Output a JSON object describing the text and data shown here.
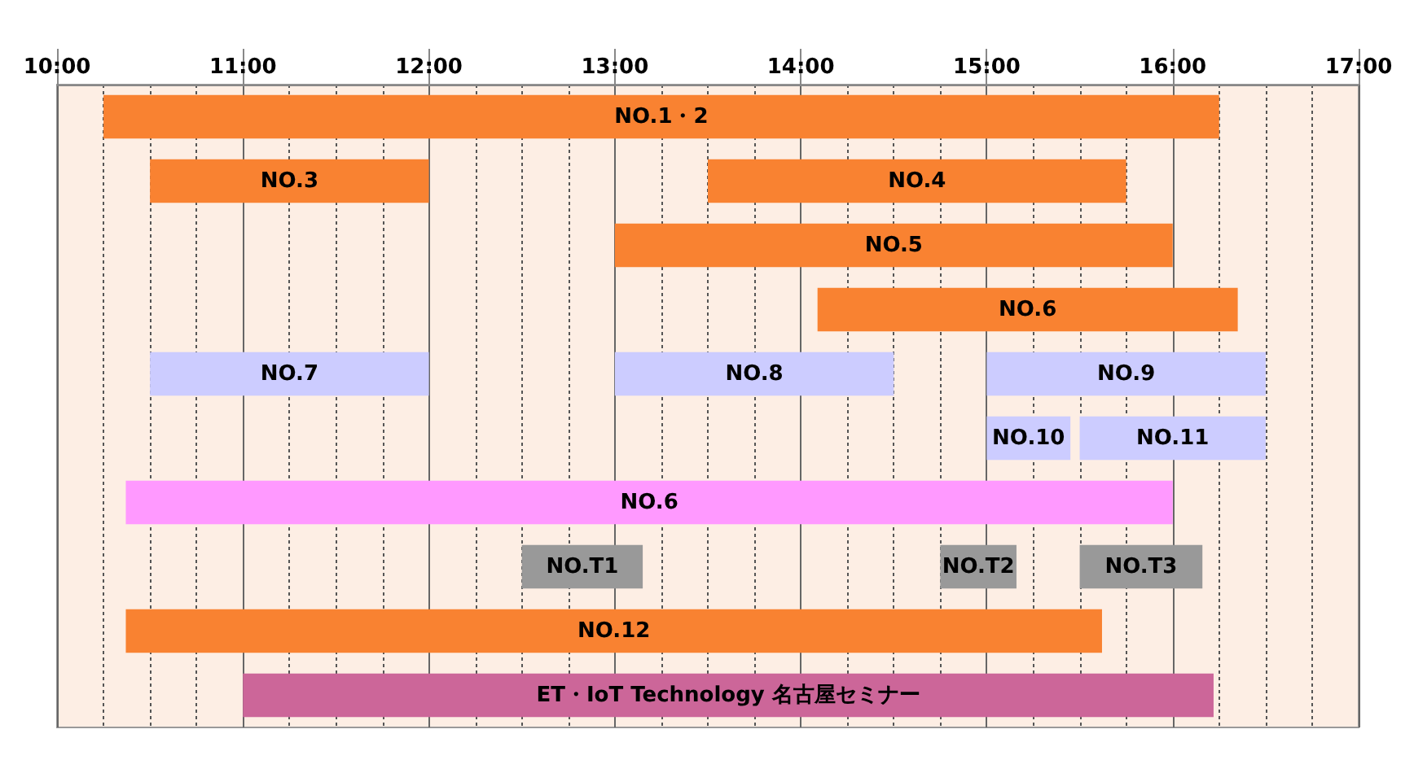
{
  "chart_data": {
    "type": "bar",
    "orientation": "horizontal",
    "categories": [
      null,
      null,
      null,
      null,
      null,
      null,
      null,
      null,
      null,
      null
    ],
    "xlim": [
      10,
      17
    ],
    "xticks": [
      {
        "value": 10,
        "label": "10:00"
      },
      {
        "value": 10.25,
        "label": null
      },
      {
        "value": 10.5,
        "label": null
      },
      {
        "value": 10.75,
        "label": null
      },
      {
        "value": 11,
        "label": "11:00"
      },
      {
        "value": 11.25,
        "label": null
      },
      {
        "value": 11.5,
        "label": null
      },
      {
        "value": 11.75,
        "label": null
      },
      {
        "value": 12,
        "label": "12:00"
      },
      {
        "value": 12.25,
        "label": null
      },
      {
        "value": 12.5,
        "label": null
      },
      {
        "value": 12.75,
        "label": null
      },
      {
        "value": 13,
        "label": "13:00"
      },
      {
        "value": 13.25,
        "label": null
      },
      {
        "value": 13.5,
        "label": null
      },
      {
        "value": 13.75,
        "label": null
      },
      {
        "value": 14,
        "label": "14:00"
      },
      {
        "value": 14.25,
        "label": null
      },
      {
        "value": 14.5,
        "label": null
      },
      {
        "value": 14.75,
        "label": null
      },
      {
        "value": 15,
        "label": "15:00"
      },
      {
        "value": 15.25,
        "label": null
      },
      {
        "value": 15.5,
        "label": null
      },
      {
        "value": 15.75,
        "label": null
      },
      {
        "value": 16,
        "label": "16:00"
      },
      {
        "value": 16.25,
        "label": null
      },
      {
        "value": 16.5,
        "label": null
      },
      {
        "value": 16.75,
        "label": null
      },
      {
        "value": 17,
        "label": "17:00"
      }
    ],
    "grid": "x",
    "tick_labels": "x",
    "series": [
      {
        "color": "#f98231",
        "base": [
          10.25,
          10.5,
          13,
          14.09,
          null,
          null,
          null,
          null,
          10.37,
          null
        ],
        "values": [
          6,
          1.5,
          3,
          2.26,
          null,
          null,
          null,
          null,
          5.25,
          null
        ],
        "value_labels": [
          "NO.1・2",
          "NO.3",
          "NO.5",
          "NO.6",
          null,
          null,
          null,
          null,
          "NO.12",
          null
        ]
      },
      {
        "color": "#f98231",
        "base": [
          null,
          13.5,
          null,
          null,
          null,
          null,
          null,
          null,
          null,
          null
        ],
        "values": [
          null,
          2.25,
          null,
          null,
          null,
          null,
          null,
          null,
          null,
          null
        ],
        "value_labels": [
          null,
          "NO.4",
          null,
          null,
          null,
          null,
          null,
          null,
          null,
          null
        ]
      },
      {
        "color": "#ccccff",
        "base": [
          null,
          null,
          null,
          null,
          10.5,
          15,
          null,
          null,
          null,
          null
        ],
        "values": [
          null,
          null,
          null,
          null,
          1.5,
          0.45,
          null,
          null,
          null,
          null
        ],
        "value_labels": [
          null,
          null,
          null,
          null,
          "NO.7",
          "NO.10",
          null,
          null,
          null,
          null
        ]
      },
      {
        "color": "#ccccff",
        "base": [
          null,
          null,
          null,
          null,
          13,
          15.5,
          null,
          null,
          null,
          null
        ],
        "values": [
          null,
          null,
          null,
          null,
          1.5,
          1,
          null,
          null,
          null,
          null
        ],
        "value_labels": [
          null,
          null,
          null,
          null,
          "NO.8",
          "NO.11",
          null,
          null,
          null,
          null
        ]
      },
      {
        "color": "#ccccff",
        "base": [
          null,
          null,
          null,
          null,
          15,
          null,
          null,
          null,
          null,
          null
        ],
        "values": [
          null,
          null,
          null,
          null,
          1.5,
          null,
          null,
          null,
          null,
          null
        ],
        "value_labels": [
          null,
          null,
          null,
          null,
          "NO.9",
          null,
          null,
          null,
          null,
          null
        ]
      },
      {
        "color": "#ff99ff",
        "base": [
          null,
          null,
          null,
          null,
          null,
          null,
          10.37,
          null,
          null,
          null
        ],
        "values": [
          null,
          null,
          null,
          null,
          null,
          null,
          5.63,
          null,
          null,
          null
        ],
        "value_labels": [
          null,
          null,
          null,
          null,
          null,
          null,
          "NO.6",
          null,
          null,
          null
        ]
      },
      {
        "color": "#999999",
        "base": [
          null,
          null,
          null,
          null,
          null,
          null,
          null,
          12.5,
          null,
          null
        ],
        "values": [
          null,
          null,
          null,
          null,
          null,
          null,
          null,
          0.65,
          null,
          null
        ],
        "value_labels": [
          null,
          null,
          null,
          null,
          null,
          null,
          null,
          "NO.T1",
          null,
          null
        ]
      },
      {
        "color": "#999999",
        "base": [
          null,
          null,
          null,
          null,
          null,
          null,
          null,
          14.75,
          null,
          null
        ],
        "values": [
          null,
          null,
          null,
          null,
          null,
          null,
          null,
          0.41,
          null,
          null
        ],
        "value_labels": [
          null,
          null,
          null,
          null,
          null,
          null,
          null,
          "NO.T2",
          null,
          null
        ]
      },
      {
        "color": "#999999",
        "base": [
          null,
          null,
          null,
          null,
          null,
          null,
          null,
          15.5,
          null,
          null
        ],
        "values": [
          null,
          null,
          null,
          null,
          null,
          null,
          null,
          0.66,
          null,
          null
        ],
        "value_labels": [
          null,
          null,
          null,
          null,
          null,
          null,
          null,
          "NO.T3",
          null,
          null
        ]
      },
      {
        "color": "#cc6699",
        "base": [
          null,
          null,
          null,
          null,
          null,
          null,
          null,
          null,
          null,
          11
        ],
        "values": [
          null,
          null,
          null,
          null,
          null,
          null,
          null,
          null,
          null,
          5.22
        ],
        "value_labels": [
          null,
          null,
          null,
          null,
          null,
          null,
          null,
          null,
          null,
          "ET・IoT Technology 名古屋セミナー"
        ]
      }
    ]
  }
}
